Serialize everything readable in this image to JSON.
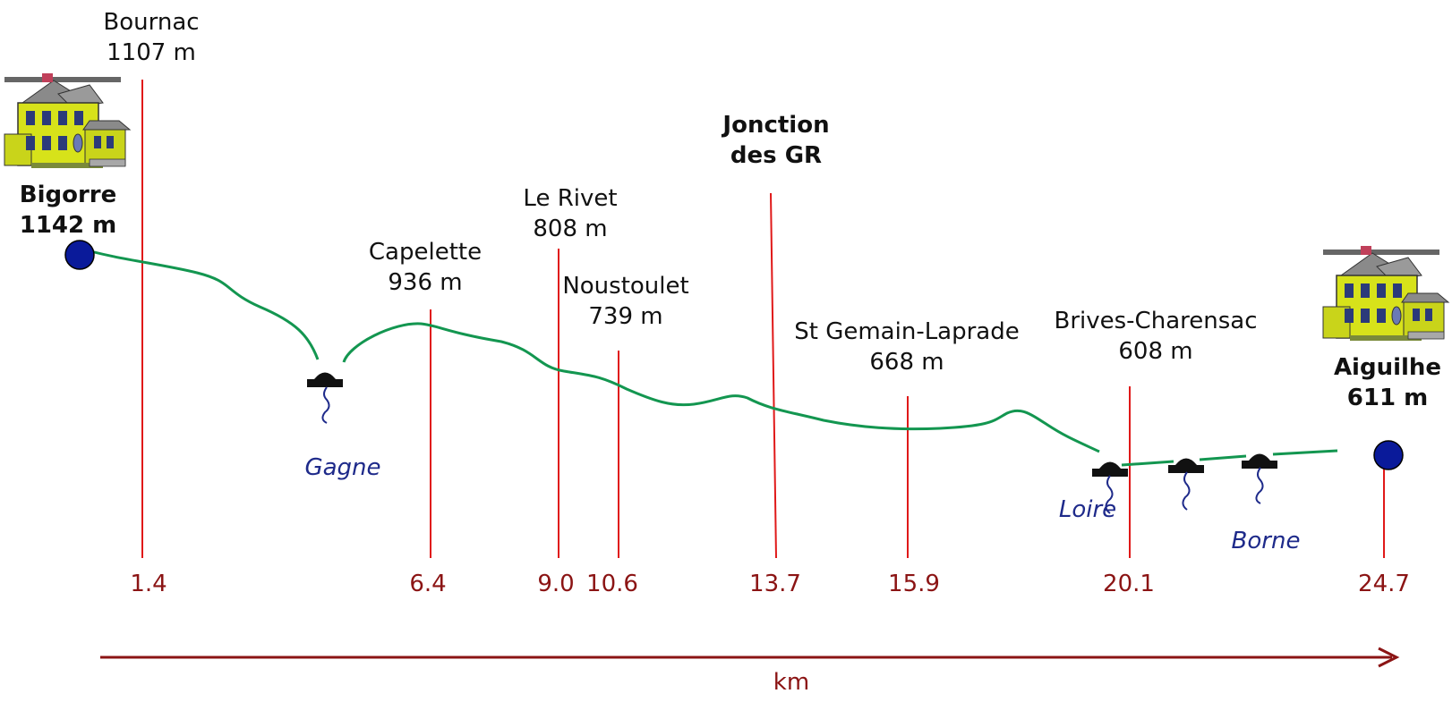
{
  "places": [
    {
      "id": "bournac",
      "name": "Bournac",
      "elevation": "1107 m",
      "km": "1.4",
      "bold": false
    },
    {
      "id": "bigorre",
      "name": "Bigorre",
      "elevation": "1142 m",
      "bold": true
    },
    {
      "id": "capelette",
      "name": "Capelette",
      "elevation": "936 m",
      "km": "6.4",
      "bold": false
    },
    {
      "id": "le-rivet",
      "name": "Le Rivet",
      "elevation": "808 m",
      "km": "9.0",
      "bold": false
    },
    {
      "id": "noustoulet",
      "name": "Noustoulet",
      "elevation": "739 m",
      "km": "10.6",
      "bold": false
    },
    {
      "id": "jonction",
      "name": "Jonction",
      "elevation": "des GR",
      "km": "13.7",
      "bold": true
    },
    {
      "id": "st-gemain",
      "name": "St Gemain-Laprade",
      "elevation": "668 m",
      "km": "15.9",
      "bold": false
    },
    {
      "id": "brives",
      "name": "Brives-Charensac",
      "elevation": "608 m",
      "km": "20.1",
      "bold": false
    },
    {
      "id": "aiguilhe",
      "name": "Aiguilhe",
      "elevation": "611 m",
      "km": "24.7",
      "bold": true
    }
  ],
  "rivers": [
    {
      "id": "gagne",
      "name": "Gagne"
    },
    {
      "id": "loire",
      "name": "Loire"
    },
    {
      "id": "borne",
      "name": "Borne"
    }
  ],
  "axis": {
    "unit": "km"
  },
  "colors": {
    "route": "#139650",
    "marker": "#e01919",
    "km_text": "#8b1414",
    "river": "#1e2a8a",
    "endpoint": "#0a1a9a"
  },
  "icons": {
    "house": "house-icon",
    "bridge": "bridge-icon"
  }
}
